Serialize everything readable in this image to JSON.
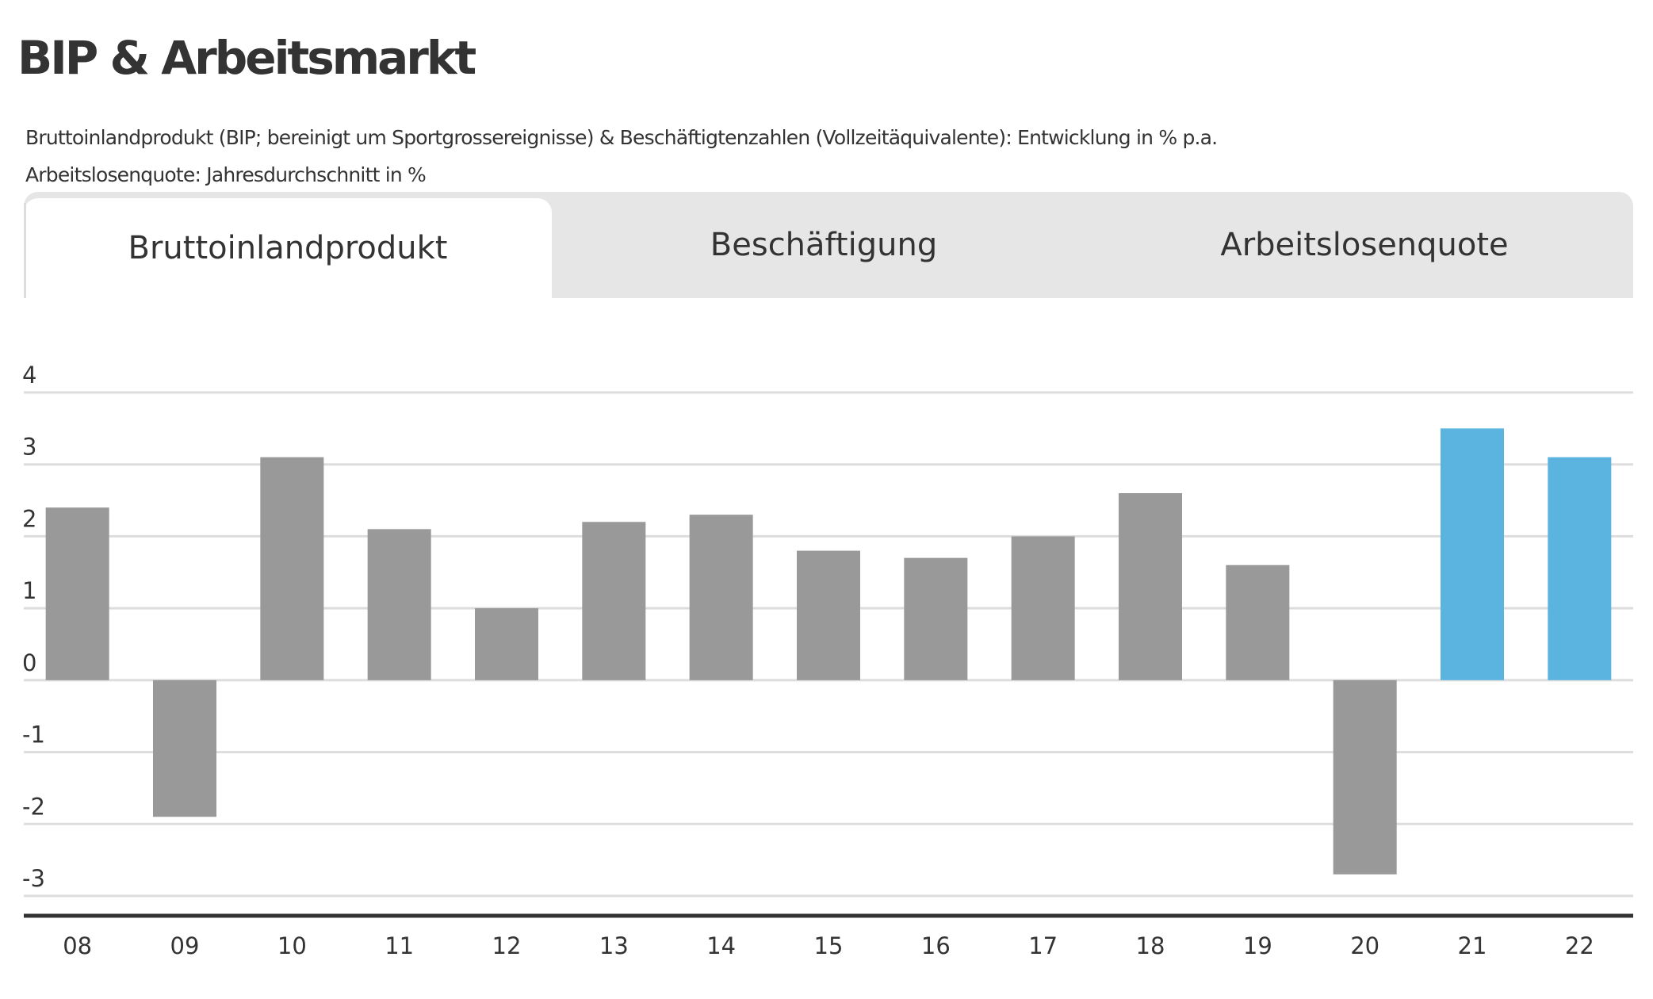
{
  "header": {
    "title": "BIP & Arbeitsmarkt",
    "subtitle_line1": "Bruttoinlandprodukt (BIP; bereinigt um Sportgrossereignisse) & Beschäftigtenzahlen (Vollzeitäquivalente): Entwicklung in % p.a.",
    "subtitle_line2": "Arbeitslosenquote: Jahresdurchschnitt in %"
  },
  "tabs": [
    {
      "label": "Bruttoinlandprodukt",
      "active": true
    },
    {
      "label": "Beschäftigung",
      "active": false
    },
    {
      "label": "Arbeitslosenquote",
      "active": false
    }
  ],
  "colors": {
    "historical": "#999999",
    "forecast": "#5bb4e0",
    "grid": "#dddddd",
    "axis": "#333333",
    "text": "#333333"
  },
  "chart_data": {
    "type": "bar",
    "categories": [
      "08",
      "09",
      "10",
      "11",
      "12",
      "13",
      "14",
      "15",
      "16",
      "17",
      "18",
      "19",
      "20",
      "21",
      "22"
    ],
    "values": [
      2.4,
      -1.9,
      3.1,
      2.1,
      1.0,
      2.2,
      2.3,
      1.8,
      1.7,
      2.0,
      2.6,
      1.6,
      -2.7,
      3.5,
      3.1
    ],
    "forecast": [
      false,
      false,
      false,
      false,
      false,
      false,
      false,
      false,
      false,
      false,
      false,
      false,
      false,
      true,
      true
    ],
    "ylim": [
      -3,
      4
    ],
    "yticks": [
      "4",
      "3",
      "2",
      "1",
      "0",
      "-1",
      "-2",
      "-3"
    ],
    "grid": true,
    "title": "",
    "xlabel": "",
    "ylabel": ""
  }
}
